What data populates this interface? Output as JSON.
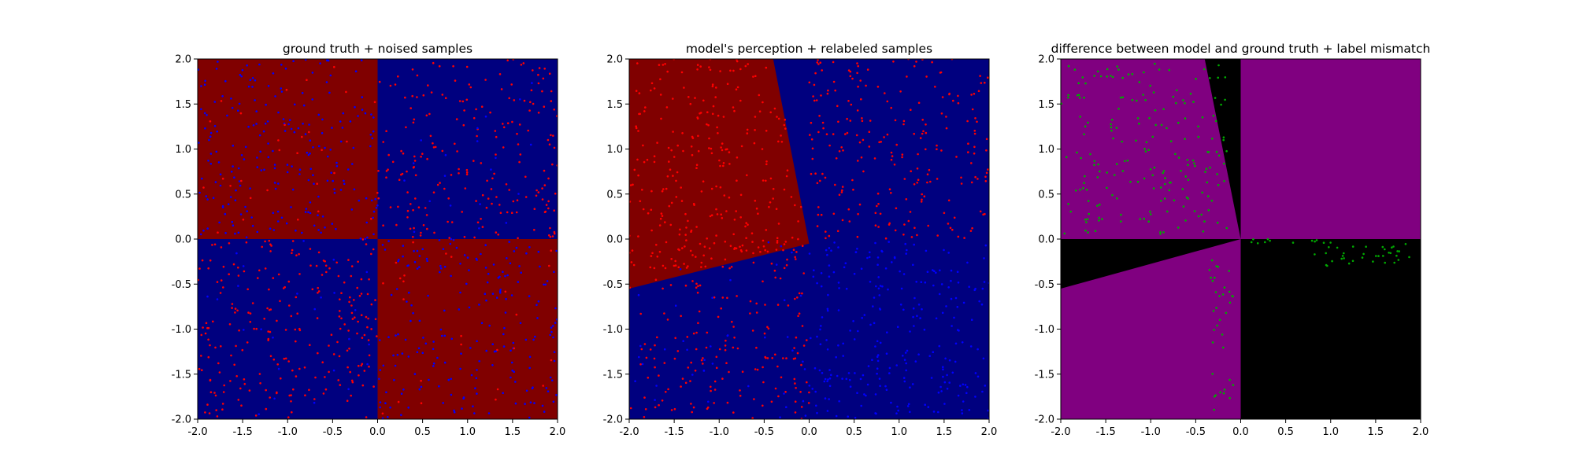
{
  "chart_data": [
    {
      "type": "scatter",
      "title": "ground truth + noised samples",
      "xlabel": "",
      "ylabel": "",
      "xlim": [
        -2.0,
        2.0
      ],
      "ylim": [
        -2.0,
        2.0
      ],
      "x_ticks": [
        "-2.0",
        "-1.5",
        "-1.0",
        "-0.5",
        "0.0",
        "0.5",
        "1.0",
        "1.5",
        "2.0"
      ],
      "y_ticks": [
        "-2.0",
        "-1.5",
        "-1.0",
        "-0.5",
        "0.0",
        "0.5",
        "1.0",
        "1.5",
        "2.0"
      ],
      "grid": false,
      "background_regions": [
        {
          "polygon": [
            [
              -2,
              0
            ],
            [
              0,
              0
            ],
            [
              0,
              2
            ],
            [
              -2,
              2
            ]
          ],
          "color": "#800000"
        },
        {
          "polygon": [
            [
              0,
              0
            ],
            [
              2,
              0
            ],
            [
              2,
              2
            ],
            [
              0,
              2
            ]
          ],
          "color": "#00007f"
        },
        {
          "polygon": [
            [
              -2,
              -2
            ],
            [
              0,
              -2
            ],
            [
              0,
              0
            ],
            [
              -2,
              0
            ]
          ],
          "color": "#00007f"
        },
        {
          "polygon": [
            [
              0,
              -2
            ],
            [
              2,
              -2
            ],
            [
              2,
              0
            ],
            [
              0,
              0
            ]
          ],
          "color": "#800000"
        }
      ],
      "point_groups": [
        {
          "color": "#0000ff",
          "seed": 11,
          "count": 230,
          "region": "q2"
        },
        {
          "color": "#ff0000",
          "seed": 12,
          "count": 30,
          "region": "q2"
        },
        {
          "color": "#ff0000",
          "seed": 13,
          "count": 210,
          "region": "q1"
        },
        {
          "color": "#0000ff",
          "seed": 14,
          "count": 20,
          "region": "q1"
        },
        {
          "color": "#ff0000",
          "seed": 15,
          "count": 240,
          "region": "q3"
        },
        {
          "color": "#0000ff",
          "seed": 16,
          "count": 25,
          "region": "q3"
        },
        {
          "color": "#0000ff",
          "seed": 17,
          "count": 210,
          "region": "q4"
        },
        {
          "color": "#ff0000",
          "seed": 18,
          "count": 25,
          "region": "q4"
        }
      ]
    },
    {
      "type": "scatter",
      "title": "model's perception + relabeled samples",
      "xlabel": "",
      "ylabel": "",
      "xlim": [
        -2.0,
        2.0
      ],
      "ylim": [
        -2.0,
        2.0
      ],
      "x_ticks": [
        "-2.0",
        "-1.5",
        "-1.0",
        "-0.5",
        "0.0",
        "0.5",
        "1.0",
        "1.5",
        "2.0"
      ],
      "y_ticks": [
        "-2.0",
        "-1.5",
        "-1.0",
        "-0.5",
        "0.0",
        "0.5",
        "1.0",
        "1.5",
        "2.0"
      ],
      "grid": false,
      "background_regions": [
        {
          "polygon": [
            [
              -2,
              -2
            ],
            [
              2,
              -2
            ],
            [
              2,
              2
            ],
            [
              -2,
              2
            ]
          ],
          "color": "#00007f"
        },
        {
          "polygon": [
            [
              -2,
              -0.55
            ],
            [
              0,
              -0.05
            ],
            [
              -0.4,
              2
            ],
            [
              -2,
              2
            ]
          ],
          "color": "#800000"
        }
      ],
      "point_groups": [
        {
          "color": "#ff0000",
          "seed": 21,
          "count": 260,
          "region": "m-red"
        },
        {
          "color": "#ff0000",
          "seed": 22,
          "count": 230,
          "region": "q1"
        },
        {
          "color": "#ff0000",
          "seed": 23,
          "count": 200,
          "region": "q3"
        },
        {
          "color": "#0000ff",
          "seed": 24,
          "count": 260,
          "region": "q4"
        },
        {
          "color": "#0000ff",
          "seed": 25,
          "count": 40,
          "region": "q3r"
        }
      ]
    },
    {
      "type": "scatter",
      "title": "difference between model and ground truth + label mismatch",
      "xlabel": "",
      "ylabel": "",
      "xlim": [
        -2.0,
        2.0
      ],
      "ylim": [
        -2.0,
        2.0
      ],
      "x_ticks": [
        "-2.0",
        "-1.5",
        "-1.0",
        "-0.5",
        "0.0",
        "0.5",
        "1.0",
        "1.5",
        "2.0"
      ],
      "y_ticks": [
        "-2.0",
        "-1.5",
        "-1.0",
        "-0.5",
        "0.0",
        "0.5",
        "1.0",
        "1.5",
        "2.0"
      ],
      "grid": false,
      "background_regions": [
        {
          "polygon": [
            [
              -2,
              -2
            ],
            [
              2,
              -2
            ],
            [
              2,
              2
            ],
            [
              -2,
              2
            ]
          ],
          "color": "#800080"
        },
        {
          "polygon": [
            [
              0,
              -2
            ],
            [
              2,
              -2
            ],
            [
              2,
              0
            ],
            [
              0,
              0
            ]
          ],
          "color": "#000000"
        },
        {
          "polygon": [
            [
              0,
              0
            ],
            [
              -0.4,
              2
            ],
            [
              0,
              2
            ]
          ],
          "color": "#000000"
        },
        {
          "polygon": [
            [
              0,
              0
            ],
            [
              -2,
              -0.55
            ],
            [
              -2,
              0
            ]
          ],
          "color": "#000000"
        }
      ],
      "point_groups": [
        {
          "color": "#00aa00",
          "seed": 31,
          "count": 200,
          "region": "q2g"
        },
        {
          "color": "#00aa00",
          "seed": 32,
          "count": 35,
          "region": "q4g"
        },
        {
          "color": "#00aa00",
          "seed": 33,
          "count": 35,
          "region": "q3g"
        },
        {
          "color": "#00aa00",
          "seed": 34,
          "count": 12,
          "region": "q1g"
        }
      ]
    }
  ]
}
